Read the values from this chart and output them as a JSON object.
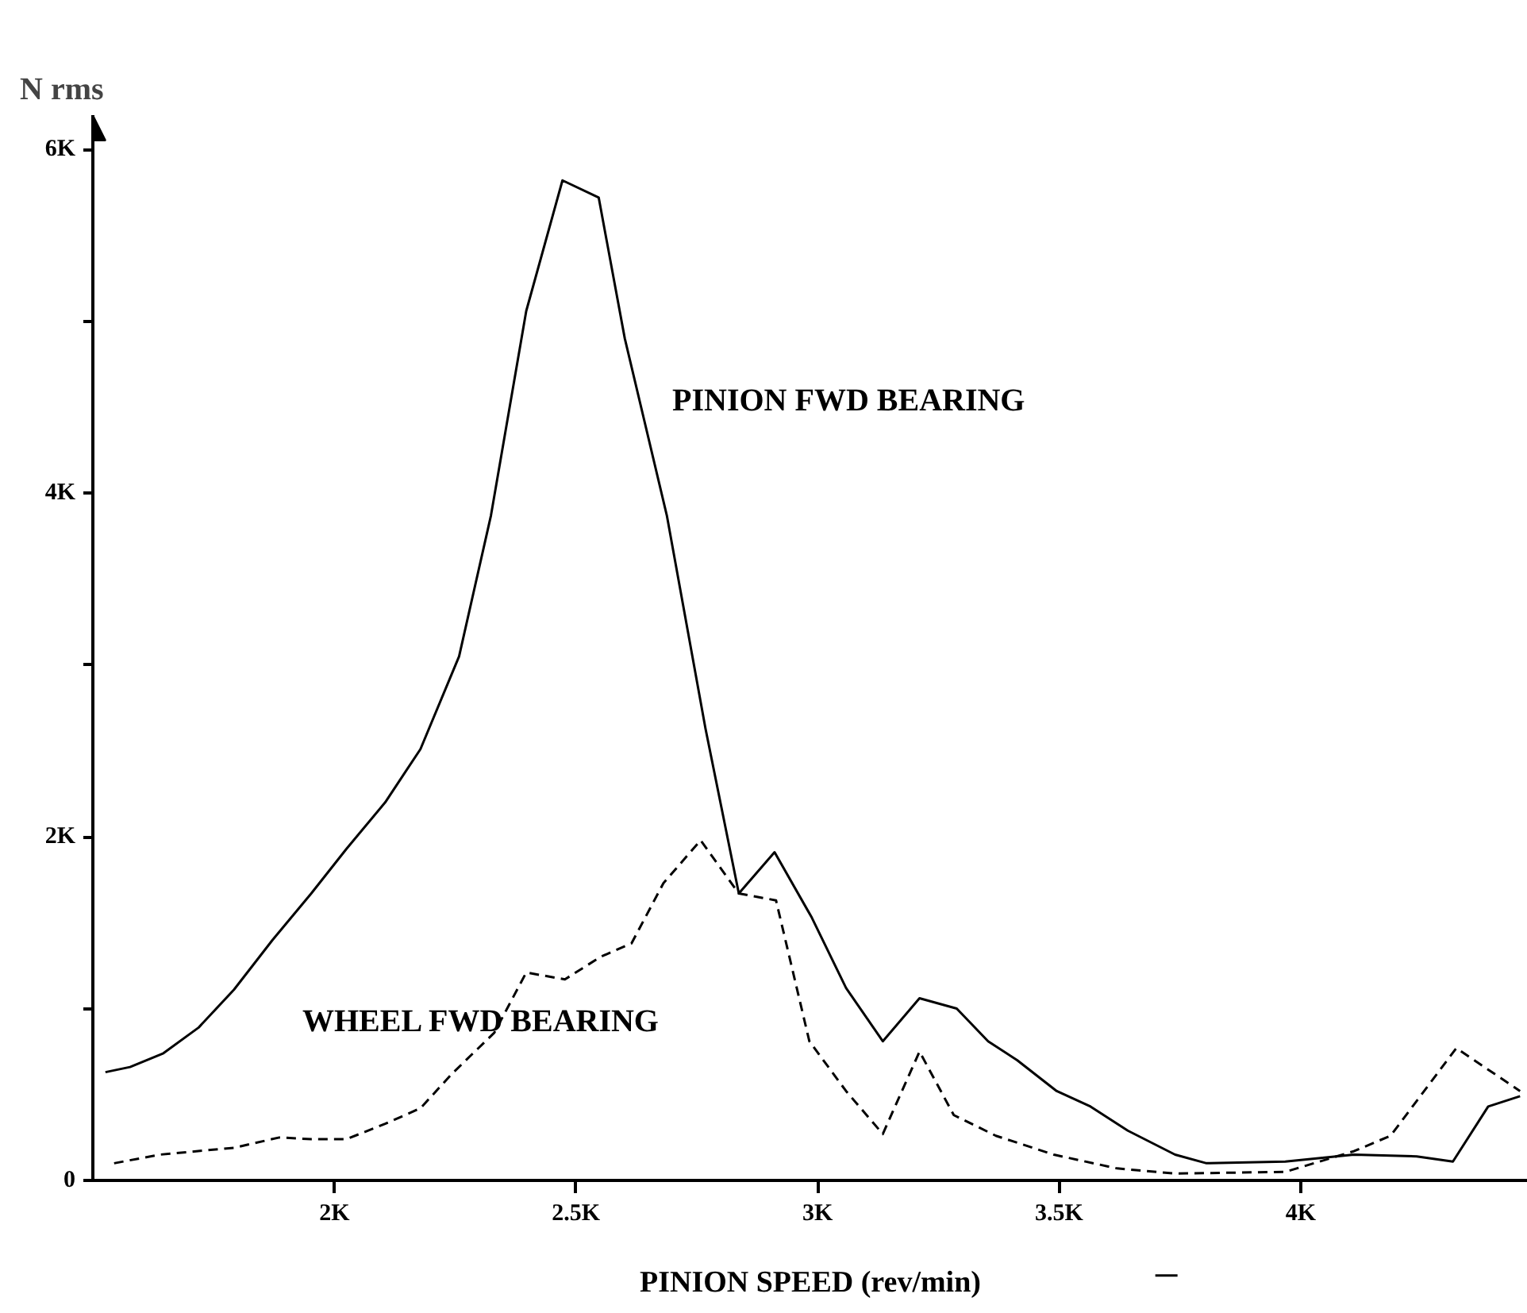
{
  "chart_data": {
    "type": "line",
    "xlabel": "PINION SPEED (rev/min)",
    "ylabel": "N rms",
    "xlim": [
      1500,
      4470
    ],
    "ylim": [
      0,
      6200
    ],
    "xticks": [
      {
        "value": 2000,
        "label": "2K"
      },
      {
        "value": 2500,
        "label": "2.5K"
      },
      {
        "value": 3000,
        "label": "3K"
      },
      {
        "value": 3500,
        "label": "3.5K"
      },
      {
        "value": 4000,
        "label": "4K"
      }
    ],
    "yticks": [
      0,
      {
        "value": 1000,
        "label": null
      },
      {
        "value": 2000,
        "label": "2K"
      },
      {
        "value": 3000,
        "label": null
      },
      {
        "value": 4000,
        "label": "4K"
      },
      {
        "value": 5000,
        "label": null
      },
      {
        "value": 6000,
        "label": "6K"
      }
    ],
    "grid": false,
    "legend": false,
    "marker": "none",
    "series": [
      {
        "name": "PINION FWD BEARING",
        "color": "#000000",
        "line_style": "solid",
        "x": [
          1526,
          1577,
          1646,
          1719,
          1792,
          1872,
          1952,
          2025,
          2105,
          2178,
          2258,
          2324,
          2397,
          2472,
          2547,
          2601,
          2688,
          2768,
          2837,
          2911,
          2988,
          3059,
          3135,
          3211,
          3288,
          3353,
          3413,
          3495,
          3565,
          3642,
          3740,
          3805,
          3968,
          4110,
          4240,
          4315,
          4388,
          4454
        ],
        "values": [
          630,
          660,
          740,
          890,
          1110,
          1400,
          1670,
          1930,
          2200,
          2510,
          3050,
          3870,
          5060,
          5820,
          5720,
          4900,
          3870,
          2630,
          1670,
          1910,
          1530,
          1120,
          810,
          1060,
          1000,
          810,
          700,
          520,
          430,
          290,
          150,
          100,
          110,
          150,
          140,
          110,
          430,
          490
        ]
      },
      {
        "name": "WHEEL FWD BEARING",
        "color": "#000000",
        "line_style": "dashed",
        "x": [
          1544,
          1638,
          1792,
          1886,
          1952,
          2025,
          2105,
          2178,
          2243,
          2331,
          2397,
          2477,
          2550,
          2615,
          2681,
          2758,
          2837,
          2914,
          2983,
          3059,
          3135,
          3211,
          3282,
          3369,
          3489,
          3620,
          3740,
          3968,
          4110,
          4186,
          4322,
          4454
        ],
        "values": [
          100,
          150,
          190,
          250,
          240,
          240,
          330,
          420,
          620,
          860,
          1210,
          1170,
          1300,
          1380,
          1730,
          1980,
          1670,
          1630,
          810,
          520,
          270,
          750,
          380,
          260,
          150,
          70,
          40,
          50,
          170,
          260,
          770,
          520
        ]
      }
    ]
  }
}
